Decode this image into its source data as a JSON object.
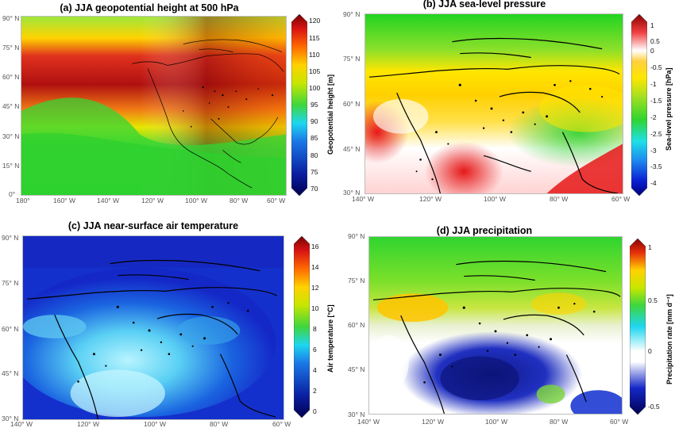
{
  "panels": [
    {
      "id": "a",
      "title": "(a) JJA geopotential height at 500 hPa",
      "lat_ticks": [
        "0°",
        "15° N",
        "30° N",
        "45° N",
        "60° N",
        "75° N",
        "90° N"
      ],
      "lon_ticks": [
        "180°",
        "160° W",
        "140° W",
        "120° W",
        "100° W",
        "80° W",
        "60° W"
      ],
      "colorbar": {
        "ticks": [
          "70",
          "75",
          "80",
          "85",
          "90",
          "95",
          "100",
          "105",
          "110",
          "115",
          "120"
        ],
        "min": 70,
        "max": 120,
        "label": "Geopotential height [m]",
        "colormap": "jet"
      }
    },
    {
      "id": "b",
      "title": "(b) JJA sea-level pressure",
      "lat_ticks": [
        "30° N",
        "45° N",
        "60° N",
        "75° N",
        "90° N"
      ],
      "lon_ticks": [
        "140° W",
        "120° W",
        "100° W",
        "80° W",
        "60° W"
      ],
      "colorbar": {
        "ticks": [
          "-4",
          "-3.5",
          "-3",
          "-2.5",
          "-2",
          "-1.5",
          "-1",
          "-0.5",
          "0",
          "0.5",
          "1"
        ],
        "min": -4,
        "max": 1,
        "label": "Sea-level pressure [hPa]",
        "colormap": "jet-diverging"
      }
    },
    {
      "id": "c",
      "title": "(c) JJA near-surface air temperature",
      "lat_ticks": [
        "30° N",
        "45° N",
        "60° N",
        "75° N",
        "90° N"
      ],
      "lon_ticks": [
        "140° W",
        "120° W",
        "100° W",
        "80° W",
        "60° W"
      ],
      "colorbar": {
        "ticks": [
          "0",
          "2",
          "4",
          "6",
          "8",
          "10",
          "12",
          "14",
          "16"
        ],
        "min": 0,
        "max": 16,
        "label": "Air temperature [°C]",
        "colormap": "jet"
      }
    },
    {
      "id": "d",
      "title": "(d) JJA precipitation",
      "lat_ticks": [
        "30° N",
        "45° N",
        "60° N",
        "75° N",
        "90° N"
      ],
      "lon_ticks": [
        "140° W",
        "120° W",
        "100° W",
        "80° W",
        "60° W"
      ],
      "colorbar": {
        "ticks": [
          "-0.5",
          "0",
          "0.5",
          "1"
        ],
        "min": -0.5,
        "max": 1,
        "label": "Precipitation rate [mm d⁻¹]",
        "colormap": "jet-diverging"
      }
    }
  ],
  "colors": {
    "darkred": "#7f0000",
    "red": "#e41a1c",
    "orange": "#ff8c00",
    "yellow": "#ffe600",
    "green": "#2bd92b",
    "cyan": "#19d4ec",
    "blue": "#1432d8",
    "navy": "#000060",
    "white": "#ffffff",
    "coast": "#000000"
  }
}
